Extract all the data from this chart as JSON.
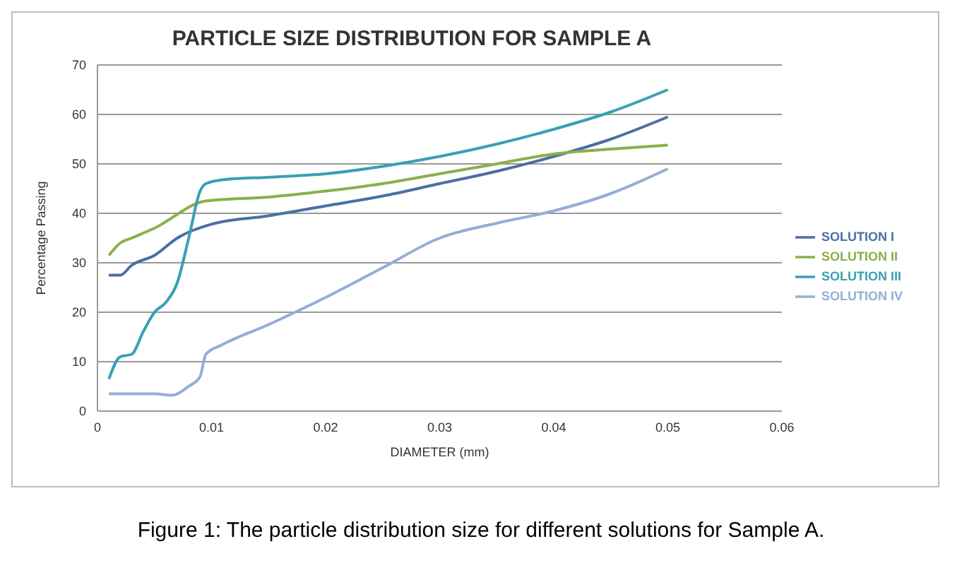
{
  "chart_data": {
    "type": "line",
    "title": "PARTICLE SIZE DISTRIBUTION FOR SAMPLE A",
    "xlabel": "DIAMETER (mm)",
    "ylabel": "Percentage Passing",
    "xlim": [
      0,
      0.06
    ],
    "xticks": [
      0,
      0.01,
      0.02,
      0.03,
      0.04,
      0.05,
      0.06
    ],
    "ylim": [
      0,
      70
    ],
    "yticks": [
      0,
      10,
      20,
      30,
      40,
      50,
      60,
      70
    ],
    "grid": "y",
    "legend": "right",
    "marker": "none",
    "line_style": "solid",
    "annotations": [
      "Figure 1: The particle distribution size for different solutions for Sample A."
    ],
    "series": [
      {
        "name": "SOLUTION I",
        "color": "#4a6fa5",
        "x": [
          0.001,
          0.002,
          0.003,
          0.005,
          0.007,
          0.01,
          0.015,
          0.02,
          0.025,
          0.03,
          0.035,
          0.04,
          0.045,
          0.05
        ],
        "values": [
          27.5,
          27.5,
          29.5,
          31.5,
          35,
          37.8,
          39.5,
          41.5,
          43.5,
          46,
          48.5,
          51.5,
          55,
          59.5
        ]
      },
      {
        "name": "SOLUTION II",
        "color": "#8ab04a",
        "x": [
          0.001,
          0.002,
          0.003,
          0.005,
          0.0095,
          0.015,
          0.02,
          0.025,
          0.03,
          0.035,
          0.04,
          0.045,
          0.05
        ],
        "values": [
          31.5,
          34,
          35,
          37,
          42.5,
          43.3,
          44.5,
          46,
          48,
          50,
          52,
          53,
          53.8
        ]
      },
      {
        "name": "SOLUTION III",
        "color": "#3a9fb5",
        "x": [
          0.001,
          0.002,
          0.003,
          0.004,
          0.005,
          0.006,
          0.007,
          0.008,
          0.009,
          0.0095,
          0.011,
          0.015,
          0.02,
          0.025,
          0.03,
          0.035,
          0.04,
          0.045,
          0.05
        ],
        "values": [
          6.5,
          11,
          11.5,
          16,
          20,
          22,
          26,
          35,
          44.5,
          46,
          46.8,
          47.3,
          48,
          49.5,
          51.5,
          54,
          57,
          60.5,
          65
        ]
      },
      {
        "name": "SOLUTION IV",
        "color": "#94aed6",
        "x": [
          0.001,
          0.003,
          0.005,
          0.0065,
          0.008,
          0.009,
          0.0095,
          0.011,
          0.015,
          0.02,
          0.025,
          0.03,
          0.035,
          0.04,
          0.045,
          0.05
        ],
        "values": [
          3.5,
          3.5,
          3.5,
          3.2,
          5,
          7,
          11.5,
          13.5,
          17.5,
          23,
          29,
          35,
          38,
          40.5,
          44,
          49
        ]
      }
    ]
  }
}
